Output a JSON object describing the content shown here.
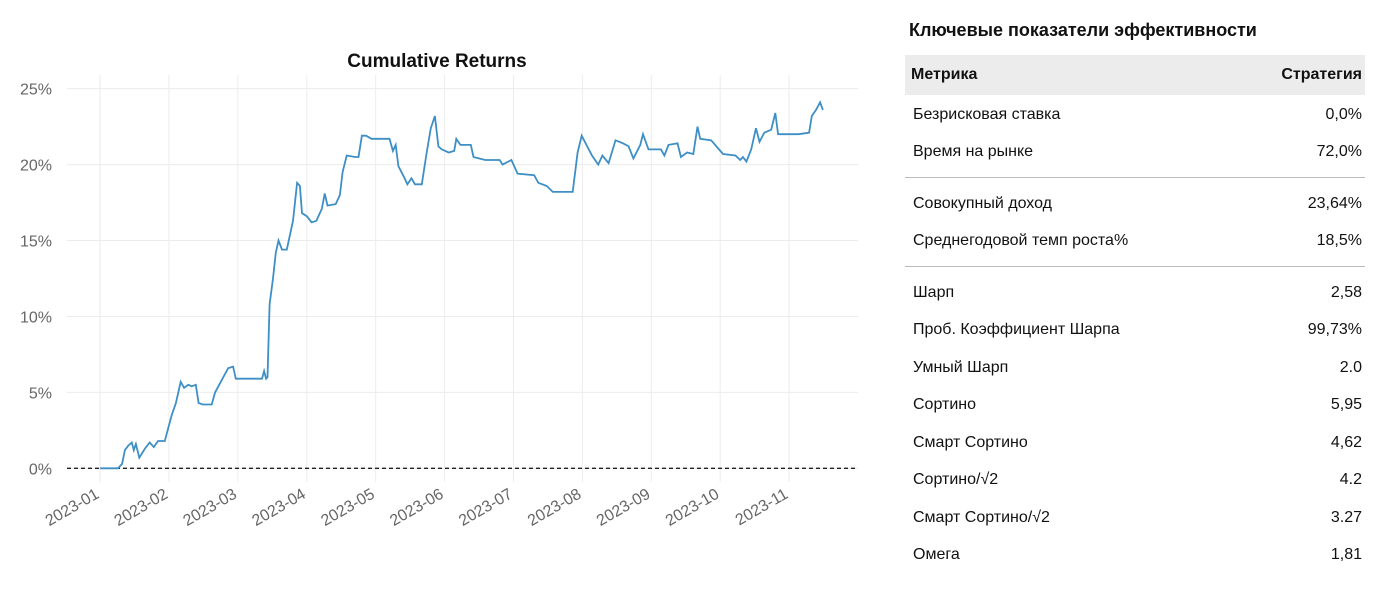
{
  "chart_data": {
    "type": "line",
    "title": "Cumulative Returns",
    "series": [
      {
        "name": "Cumulative Returns",
        "color": "#3d8fc6",
        "x": [
          1.0,
          1.26,
          1.32,
          1.36,
          1.41,
          1.46,
          1.49,
          1.52,
          1.57,
          1.65,
          1.72,
          1.78,
          1.84,
          1.94,
          2.04,
          2.1,
          2.17,
          2.22,
          2.28,
          2.33,
          2.39,
          2.43,
          2.49,
          2.62,
          2.67,
          2.74,
          2.86,
          2.93,
          2.97,
          3.35,
          3.38,
          3.41,
          3.43,
          3.46,
          3.51,
          3.55,
          3.59,
          3.64,
          3.71,
          3.8,
          3.86,
          3.9,
          3.93,
          4.0,
          4.07,
          4.14,
          4.22,
          4.26,
          4.3,
          4.42,
          4.48,
          4.52,
          4.58,
          4.7,
          4.75,
          4.8,
          4.86,
          4.94,
          5.2,
          5.25,
          5.29,
          5.33,
          5.41,
          5.46,
          5.52,
          5.57,
          5.67,
          5.74,
          5.8,
          5.86,
          5.91,
          5.96,
          6.06,
          6.14,
          6.17,
          6.23,
          6.38,
          6.42,
          6.59,
          6.8,
          6.84,
          6.97,
          7.06,
          7.3,
          7.36,
          7.48,
          7.57,
          7.86,
          7.93,
          7.99,
          8.07,
          8.14,
          8.23,
          8.29,
          8.38,
          8.48,
          8.59,
          8.67,
          8.74,
          8.84,
          8.88,
          8.96,
          9.14,
          9.19,
          9.25,
          9.38,
          9.43,
          9.52,
          9.61,
          9.67,
          9.71,
          9.87,
          10.04,
          10.22,
          10.29,
          10.33,
          10.38,
          10.45,
          10.52,
          10.57,
          10.64,
          10.74,
          10.8,
          10.84,
          11.14,
          11.29,
          11.33,
          11.39,
          11.45,
          11.49
        ],
        "values": [
          0,
          0,
          0.3,
          1.2,
          1.5,
          1.7,
          1.2,
          1.6,
          0.7,
          1.3,
          1.7,
          1.4,
          1.8,
          1.8,
          3.5,
          4.3,
          5.7,
          5.3,
          5.5,
          5.4,
          5.5,
          4.3,
          4.2,
          4.2,
          5.0,
          5.6,
          6.6,
          6.7,
          5.9,
          5.9,
          6.4,
          5.9,
          6.0,
          10.8,
          12.5,
          14.2,
          15.0,
          14.4,
          14.4,
          16.3,
          18.8,
          18.6,
          16.8,
          16.6,
          16.2,
          16.3,
          17.1,
          18.1,
          17.3,
          17.4,
          18.0,
          19.5,
          20.6,
          20.5,
          20.5,
          21.9,
          21.9,
          21.7,
          21.7,
          20.9,
          21.3,
          19.9,
          19.2,
          18.7,
          19.1,
          18.7,
          18.7,
          20.8,
          22.4,
          23.2,
          21.2,
          21.0,
          20.8,
          20.9,
          21.7,
          21.3,
          21.3,
          20.5,
          20.3,
          20.3,
          20.0,
          20.3,
          19.4,
          19.3,
          18.8,
          18.6,
          18.2,
          18.2,
          20.8,
          21.9,
          21.2,
          20.6,
          20.0,
          20.6,
          20.1,
          21.6,
          21.4,
          21.2,
          20.4,
          21.3,
          22.0,
          21.0,
          21.0,
          20.6,
          21.3,
          21.4,
          20.5,
          20.8,
          20.7,
          22.5,
          21.7,
          21.6,
          20.7,
          20.6,
          20.3,
          20.5,
          20.2,
          21.0,
          22.4,
          21.5,
          22.1,
          22.3,
          23.4,
          22.0,
          22.0,
          22.1,
          23.2,
          23.6,
          24.1,
          23.6
        ]
      }
    ],
    "xlim": [
      0.52,
      12.0
    ],
    "xticks": [
      {
        "value": 1,
        "label": "2023-01"
      },
      {
        "value": 2,
        "label": "2023-02"
      },
      {
        "value": 3,
        "label": "2023-03"
      },
      {
        "value": 4,
        "label": "2023-04"
      },
      {
        "value": 5,
        "label": "2023-05"
      },
      {
        "value": 6,
        "label": "2023-06"
      },
      {
        "value": 7,
        "label": "2023-07"
      },
      {
        "value": 8,
        "label": "2023-08"
      },
      {
        "value": 9,
        "label": "2023-09"
      },
      {
        "value": 10,
        "label": "2023-10"
      },
      {
        "value": 11,
        "label": "2023-11"
      }
    ],
    "ylim": [
      -0.9,
      25.9
    ],
    "yticks": [
      {
        "value": 0,
        "label": "0%"
      },
      {
        "value": 5,
        "label": "5%"
      },
      {
        "value": 10,
        "label": "10%"
      },
      {
        "value": 15,
        "label": "15%"
      },
      {
        "value": 20,
        "label": "20%"
      },
      {
        "value": 25,
        "label": "25%"
      }
    ],
    "grid": true,
    "reference_line": 0
  },
  "table": {
    "title": "Ключевые показатели эффективности",
    "header": [
      "Метрика",
      "Стратегия"
    ],
    "groups": [
      [
        [
          "Безрисковая ставка",
          "0,0%"
        ],
        [
          "Время на рынке",
          "72,0%"
        ]
      ],
      [
        [
          "Совокупный доход",
          "23,64%"
        ],
        [
          "Среднегодовой темп роста%",
          "18,5%"
        ]
      ],
      [
        [
          "Шарп",
          "2,58"
        ],
        [
          "Проб. Коэффициент Шарпа",
          "99,73%"
        ],
        [
          "Умный Шарп",
          "2.0"
        ],
        [
          "Сортино",
          "5,95"
        ],
        [
          "Смарт Сортино",
          "4,62"
        ],
        [
          "Сортино/√2",
          "4.2"
        ],
        [
          "Смарт Сортино/√2",
          "3.27"
        ],
        [
          "Омега",
          "1,81"
        ]
      ]
    ]
  }
}
